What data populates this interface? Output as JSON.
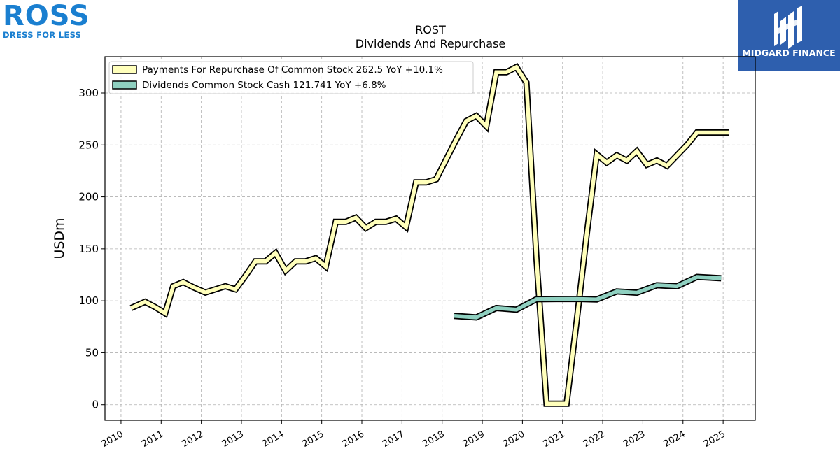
{
  "logos": {
    "left_brand": "ROSS",
    "left_tagline": "DRESS FOR LESS",
    "left_color": "#1a7fd0",
    "right_name": "MIDGARD FINANCE",
    "right_bg": "#2e5fae"
  },
  "chart_data": {
    "type": "line",
    "title": "ROST",
    "subtitle": "Dividends And Repurchase",
    "ylabel": "USDm",
    "xlabel": "",
    "ylim": [
      -15,
      335
    ],
    "xlim": [
      2009.6,
      2025.8
    ],
    "yticks": [
      0,
      50,
      100,
      150,
      200,
      250,
      300
    ],
    "xticks": [
      "2010",
      "2011",
      "2012",
      "2013",
      "2014",
      "2015",
      "2016",
      "2017",
      "2018",
      "2019",
      "2020",
      "2021",
      "2022",
      "2023",
      "2024",
      "2025"
    ],
    "grid": true,
    "legend_position": "top-left",
    "series": [
      {
        "name": "Payments For Repurchase Of Common Stock",
        "legend": "Payments For Repurchase Of Common Stock  262.5 YoY +10.1%",
        "color": "#ffffbb",
        "x": [
          2010.25,
          2010.6,
          2010.85,
          2011.1,
          2011.3,
          2011.55,
          2011.8,
          2012.1,
          2012.35,
          2012.6,
          2012.85,
          2013.1,
          2013.35,
          2013.6,
          2013.85,
          2014.1,
          2014.35,
          2014.6,
          2014.85,
          2015.1,
          2015.35,
          2015.6,
          2015.85,
          2016.1,
          2016.35,
          2016.6,
          2016.85,
          2017.1,
          2017.35,
          2017.6,
          2017.85,
          2018.1,
          2018.35,
          2018.6,
          2018.85,
          2019.1,
          2019.35,
          2019.6,
          2019.85,
          2020.1,
          2020.35,
          2020.6,
          2020.85,
          2021.1,
          2021.35,
          2021.6,
          2021.85,
          2022.1,
          2022.35,
          2022.6,
          2022.85,
          2023.1,
          2023.35,
          2023.6,
          2023.85,
          2024.1,
          2024.35,
          2024.6,
          2024.85,
          2025.15
        ],
        "values": [
          93,
          99,
          94,
          88,
          114,
          118,
          113,
          108,
          111,
          114,
          111,
          124,
          138,
          138,
          146,
          129,
          138,
          138,
          141,
          133,
          176,
          176,
          180,
          170,
          176,
          176,
          179,
          171,
          214,
          214,
          217,
          236,
          255,
          273,
          278,
          268,
          320,
          320,
          325,
          310,
          140,
          1,
          1,
          1,
          80,
          163,
          241,
          233,
          240,
          235,
          244,
          231,
          235,
          230,
          240,
          250,
          262,
          262,
          262,
          262
        ]
      },
      {
        "name": "Dividends Common Stock Cash",
        "legend": "Dividends Common Stock Cash  121.741 YoY +6.8%",
        "color": "#8fd0c0",
        "x": [
          2018.3,
          2018.85,
          2019.35,
          2019.85,
          2020.35,
          2020.85,
          2021.35,
          2021.85,
          2022.35,
          2022.85,
          2023.35,
          2023.85,
          2024.35,
          2024.95
        ],
        "values": [
          85.5,
          84,
          93,
          91.5,
          101.5,
          101.7,
          101.8,
          101.3,
          109,
          107.8,
          115,
          114,
          123,
          121.7
        ]
      }
    ]
  }
}
